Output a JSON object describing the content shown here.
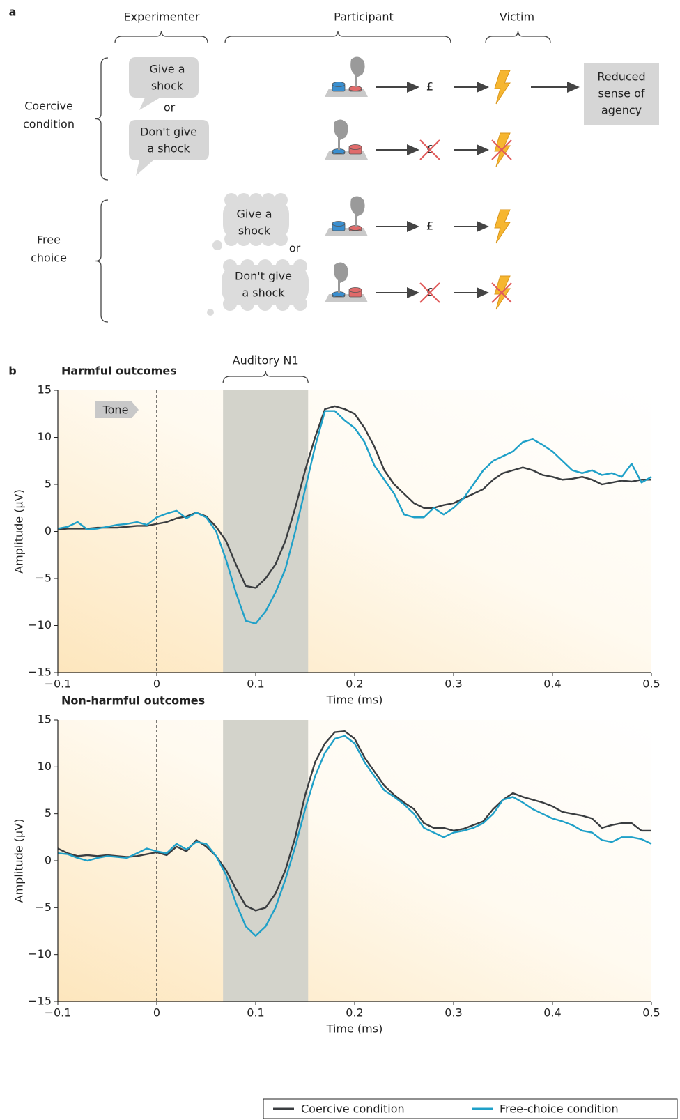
{
  "panel_a": {
    "label": "a",
    "headers": {
      "experimenter": "Experimenter",
      "participant": "Participant",
      "victim": "Victim"
    },
    "conditions": [
      {
        "label": [
          "Coercive",
          "condition"
        ],
        "options": [
          [
            "Give a",
            "shock"
          ],
          [
            "Don't give",
            "a shock"
          ]
        ],
        "connector": "or",
        "outcome": [
          "Reduced",
          "sense of",
          "agency"
        ]
      },
      {
        "label": [
          "Free",
          "choice"
        ],
        "options": [
          [
            "Give a",
            "shock"
          ],
          [
            "Don't give",
            "a shock"
          ]
        ],
        "connector": "or"
      }
    ],
    "currency": "£"
  },
  "panel_b_label": "b",
  "chart_data": [
    {
      "type": "line",
      "title": "Harmful outcomes",
      "xlabel": "Time (ms)",
      "ylabel": "Amplitude (μV)",
      "x": [
        -0.1,
        -0.09,
        -0.08,
        -0.07,
        -0.06,
        -0.05,
        -0.04,
        -0.03,
        -0.02,
        -0.01,
        0,
        0.01,
        0.02,
        0.03,
        0.04,
        0.05,
        0.06,
        0.07,
        0.08,
        0.09,
        0.1,
        0.11,
        0.12,
        0.13,
        0.14,
        0.15,
        0.16,
        0.17,
        0.18,
        0.19,
        0.2,
        0.21,
        0.22,
        0.23,
        0.24,
        0.25,
        0.26,
        0.27,
        0.28,
        0.29,
        0.3,
        0.31,
        0.32,
        0.33,
        0.34,
        0.35,
        0.36,
        0.37,
        0.38,
        0.39,
        0.4,
        0.41,
        0.42,
        0.43,
        0.44,
        0.45,
        0.46,
        0.47,
        0.48,
        0.49,
        0.5
      ],
      "series": [
        {
          "name": "Coercive condition",
          "color": "#3a3d40",
          "values": [
            0.2,
            0.3,
            0.3,
            0.3,
            0.4,
            0.4,
            0.4,
            0.5,
            0.6,
            0.6,
            0.8,
            1.0,
            1.4,
            1.6,
            2.0,
            1.6,
            0.5,
            -1.0,
            -3.5,
            -5.8,
            -6.0,
            -5.0,
            -3.5,
            -1.0,
            2.5,
            6.5,
            10.0,
            13.0,
            13.3,
            13.0,
            12.5,
            11.0,
            9.0,
            6.5,
            5.0,
            4.0,
            3.0,
            2.5,
            2.5,
            2.8,
            3.0,
            3.5,
            4.0,
            4.5,
            5.5,
            6.2,
            6.5,
            6.8,
            6.5,
            6.0,
            5.8,
            5.5,
            5.6,
            5.8,
            5.5,
            5.0,
            5.2,
            5.4,
            5.3,
            5.5,
            5.5
          ]
        },
        {
          "name": "Free-choice condition",
          "color": "#1fa0c8",
          "values": [
            0.3,
            0.5,
            1.0,
            0.2,
            0.3,
            0.5,
            0.7,
            0.8,
            1.0,
            0.7,
            1.5,
            1.9,
            2.2,
            1.4,
            2.0,
            1.5,
            0.0,
            -3.0,
            -6.5,
            -9.5,
            -9.8,
            -8.5,
            -6.5,
            -4.0,
            0.0,
            4.5,
            9.0,
            12.8,
            12.8,
            11.8,
            11.0,
            9.5,
            7.0,
            5.5,
            4.0,
            1.8,
            1.5,
            1.5,
            2.5,
            1.8,
            2.5,
            3.5,
            5.0,
            6.5,
            7.5,
            8.0,
            8.5,
            9.5,
            9.8,
            9.2,
            8.5,
            7.5,
            6.5,
            6.2,
            6.5,
            6.0,
            6.2,
            5.8,
            7.2,
            5.2,
            5.8
          ]
        }
      ],
      "xlim": [
        -0.1,
        0.5
      ],
      "ylim": [
        -15,
        15
      ],
      "xticks": [
        {
          "value": -0.1,
          "label": "−0.1"
        },
        0,
        0.1,
        0.2,
        0.3,
        0.4,
        0.5
      ],
      "yticks": [
        {
          "value": -15,
          "label": "−15"
        },
        {
          "value": -10,
          "label": "−10"
        },
        {
          "value": -5,
          "label": "−5"
        },
        0,
        5,
        10,
        15
      ],
      "highlight": {
        "xlim": [
          0.067,
          0.153
        ],
        "label": "Auditory N1"
      },
      "vline": {
        "x": 0,
        "label": "Tone"
      }
    },
    {
      "type": "line",
      "title": "Non-harmful outcomes",
      "xlabel": "Time (ms)",
      "ylabel": "Amplitude (μV)",
      "x": [
        -0.1,
        -0.09,
        -0.08,
        -0.07,
        -0.06,
        -0.05,
        -0.04,
        -0.03,
        -0.02,
        -0.01,
        0,
        0.01,
        0.02,
        0.03,
        0.04,
        0.05,
        0.06,
        0.07,
        0.08,
        0.09,
        0.1,
        0.11,
        0.12,
        0.13,
        0.14,
        0.15,
        0.16,
        0.17,
        0.18,
        0.19,
        0.2,
        0.21,
        0.22,
        0.23,
        0.24,
        0.25,
        0.26,
        0.27,
        0.28,
        0.29,
        0.3,
        0.31,
        0.32,
        0.33,
        0.34,
        0.35,
        0.36,
        0.37,
        0.38,
        0.39,
        0.4,
        0.41,
        0.42,
        0.43,
        0.44,
        0.45,
        0.46,
        0.47,
        0.48,
        0.49,
        0.5
      ],
      "series": [
        {
          "name": "Coercive condition",
          "color": "#3a3d40",
          "values": [
            1.3,
            0.8,
            0.5,
            0.6,
            0.5,
            0.6,
            0.5,
            0.4,
            0.5,
            0.7,
            0.9,
            0.6,
            1.5,
            1.0,
            2.2,
            1.5,
            0.5,
            -1.0,
            -3.0,
            -4.8,
            -5.3,
            -5.0,
            -3.5,
            -1.0,
            2.5,
            7.0,
            10.5,
            12.5,
            13.7,
            13.8,
            13.0,
            11.0,
            9.5,
            8.0,
            7.0,
            6.2,
            5.5,
            4.0,
            3.5,
            3.5,
            3.2,
            3.4,
            3.8,
            4.2,
            5.5,
            6.5,
            7.2,
            6.8,
            6.5,
            6.2,
            5.8,
            5.2,
            5.0,
            4.8,
            4.5,
            3.5,
            3.8,
            4.0,
            4.0,
            3.2,
            3.2
          ]
        },
        {
          "name": "Free-choice condition",
          "color": "#1fa0c8",
          "values": [
            0.8,
            0.7,
            0.3,
            0.0,
            0.3,
            0.5,
            0.4,
            0.3,
            0.8,
            1.3,
            1.0,
            0.8,
            1.8,
            1.2,
            2.0,
            1.8,
            0.5,
            -1.5,
            -4.5,
            -7.0,
            -8.0,
            -7.0,
            -5.0,
            -2.0,
            1.5,
            5.5,
            9.0,
            11.5,
            13.0,
            13.3,
            12.5,
            10.5,
            9.0,
            7.5,
            6.8,
            6.0,
            5.0,
            3.5,
            3.0,
            2.5,
            3.0,
            3.2,
            3.5,
            4.0,
            5.0,
            6.5,
            6.8,
            6.2,
            5.5,
            5.0,
            4.5,
            4.2,
            3.8,
            3.2,
            3.0,
            2.2,
            2.0,
            2.5,
            2.5,
            2.3,
            1.8
          ]
        }
      ],
      "xlim": [
        -0.1,
        0.5
      ],
      "ylim": [
        -15,
        15
      ],
      "xticks": [
        {
          "value": -0.1,
          "label": "−0.1"
        },
        0,
        0.1,
        0.2,
        0.3,
        0.4,
        0.5
      ],
      "yticks": [
        {
          "value": -15,
          "label": "−15"
        },
        {
          "value": -10,
          "label": "−10"
        },
        {
          "value": -5,
          "label": "−5"
        },
        0,
        5,
        10,
        15
      ],
      "highlight": {
        "xlim": [
          0.067,
          0.153
        ]
      },
      "vline": {
        "x": 0
      }
    }
  ]
}
